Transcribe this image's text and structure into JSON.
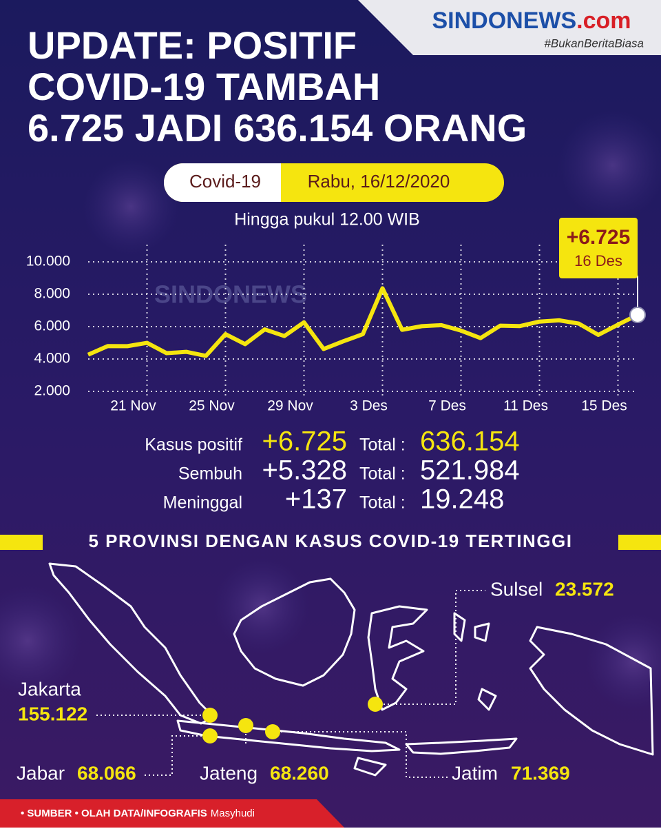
{
  "header": {
    "logo": "SINDONEWS",
    "logo_suffix": ".com",
    "tagline": "#BukanBeritaBiasa"
  },
  "title": [
    "UPDATE: POSITIF",
    "COVID-19 TAMBAH",
    "6.725 JADI 636.154 ORANG"
  ],
  "badge": {
    "topic": "Covid-19",
    "date": "Rabu, 16/12/2020"
  },
  "subtitle": "Hingga pukul 12.00 WIB",
  "chart_data": {
    "type": "line",
    "categories": [
      null,
      null,
      null,
      "21 Nov",
      null,
      null,
      null,
      "25 Nov",
      null,
      null,
      null,
      "29 Nov",
      null,
      null,
      null,
      "3 Des",
      null,
      null,
      null,
      "7 Des",
      null,
      null,
      null,
      "11 Des",
      null,
      null,
      null,
      "15 Des",
      null
    ],
    "values": [
      4265,
      4798,
      4792,
      4998,
      4360,
      4442,
      4192,
      5534,
      4917,
      5828,
      5418,
      6267,
      4617,
      5092,
      5533,
      8369,
      5803,
      6027,
      6089,
      5754,
      5292,
      6058,
      6033,
      6310,
      6388,
      6189,
      5489,
      6120,
      6725
    ],
    "value_labels": [
      null,
      null,
      null,
      null,
      null,
      null,
      null,
      null,
      null,
      null,
      null,
      null,
      null,
      null,
      null,
      null,
      null,
      null,
      null,
      null,
      null,
      null,
      null,
      null,
      null,
      null,
      null,
      null,
      "+6.725"
    ],
    "annotation": "16 Des",
    "color": "#f5e50f",
    "ylim": [
      2000,
      10000
    ],
    "yticks": [
      {
        "value": 2000,
        "label": "2.000"
      },
      {
        "value": 4000,
        "label": "4.000"
      },
      {
        "value": 6000,
        "label": "6.000"
      },
      {
        "value": 8000,
        "label": "8.000"
      },
      {
        "value": 10000,
        "label": "10.000"
      }
    ],
    "grid": true
  },
  "stats": [
    {
      "label": "Kasus positif",
      "change": "+6.725",
      "total_label": "Total :",
      "total": "636.154"
    },
    {
      "label": "Sembuh",
      "change": "+5.328",
      "total_label": "Total :",
      "total": "521.984"
    },
    {
      "label": "Meninggal",
      "change": "+137",
      "total_label": "Total :",
      "total": "19.248"
    }
  ],
  "map": {
    "title": "5 PROVINSI DENGAN KASUS COVID-19 TERTINGGI",
    "provinces": [
      {
        "name": "Sulsel",
        "value": "23.572"
      },
      {
        "name": "Jakarta",
        "value": "155.122"
      },
      {
        "name": "Jabar",
        "value": "68.066"
      },
      {
        "name": "Jateng",
        "value": "68.260"
      },
      {
        "name": "Jatim",
        "value": "71.369"
      }
    ]
  },
  "footer": {
    "source": "• SUMBER • OLAH DATA/INFOGRAFIS",
    "author": "Masyhudi"
  }
}
